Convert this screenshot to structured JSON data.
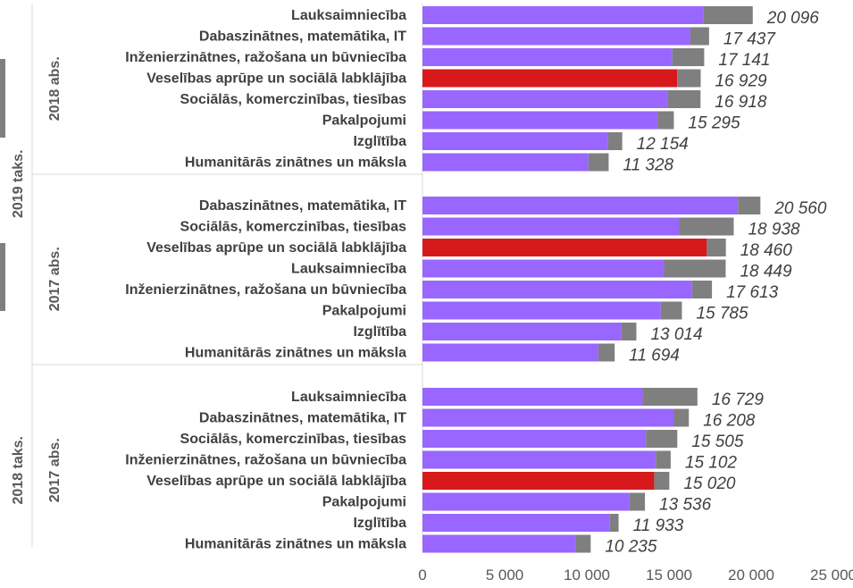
{
  "chart_data": {
    "type": "bar",
    "orientation": "horizontal",
    "stacked": true,
    "xlim": [
      0,
      25000
    ],
    "x_ticks": [
      "0",
      "5 000",
      "10 000",
      "15 000",
      "20 000",
      "25 000"
    ],
    "grid": false,
    "colors": {
      "main": "#9966ff",
      "highlight": "#d7191c",
      "remainder": "#7f7f7f"
    },
    "groups": [
      {
        "outer_label": "2019 taks.",
        "inner_label": "2018 abs.",
        "rows": [
          {
            "category": "Lauksaimniecība",
            "base": 17100,
            "total": 20096,
            "total_label": "20 096",
            "highlight": false
          },
          {
            "category": "Dabaszinātnes, matemātika, IT",
            "base": 16300,
            "total": 17437,
            "total_label": "17 437",
            "highlight": false
          },
          {
            "category": "Inženierzinātnes, ražošana un būvniecība",
            "base": 15200,
            "total": 17141,
            "total_label": "17 141",
            "highlight": false
          },
          {
            "category": "Veselības aprūpe un sociālā labklājība",
            "base": 15500,
            "total": 16929,
            "total_label": "16 929",
            "highlight": true
          },
          {
            "category": "Sociālās, komerczinības, tiesības",
            "base": 14900,
            "total": 16918,
            "total_label": "16 918",
            "highlight": false
          },
          {
            "category": "Pakalpojumi",
            "base": 14300,
            "total": 15295,
            "total_label": "15 295",
            "highlight": false
          },
          {
            "category": "Izglītība",
            "base": 11300,
            "total": 12154,
            "total_label": "12 154",
            "highlight": false
          },
          {
            "category": "Humanitārās zinātnes un māksla",
            "base": 10100,
            "total": 11328,
            "total_label": "11 328",
            "highlight": false
          }
        ]
      },
      {
        "outer_label": "2019 taks.",
        "inner_label": "2017 abs.",
        "rows": [
          {
            "category": "Dabaszinātnes, matemātika, IT",
            "base": 19200,
            "total": 20560,
            "total_label": "20 560",
            "highlight": false
          },
          {
            "category": "Sociālās, komerczinības, tiesības",
            "base": 15600,
            "total": 18938,
            "total_label": "18 938",
            "highlight": false
          },
          {
            "category": "Veselības aprūpe un sociālā labklājība",
            "base": 17300,
            "total": 18460,
            "total_label": "18 460",
            "highlight": true
          },
          {
            "category": "Lauksaimniecība",
            "base": 14700,
            "total": 18449,
            "total_label": "18 449",
            "highlight": false
          },
          {
            "category": "Inženierzinātnes, ražošana un būvniecība",
            "base": 16400,
            "total": 17613,
            "total_label": "17 613",
            "highlight": false
          },
          {
            "category": "Pakalpojumi",
            "base": 14500,
            "total": 15785,
            "total_label": "15 785",
            "highlight": false
          },
          {
            "category": "Izglītība",
            "base": 12100,
            "total": 13014,
            "total_label": "13 014",
            "highlight": false
          },
          {
            "category": "Humanitārās zinātnes un māksla",
            "base": 10700,
            "total": 11694,
            "total_label": "11 694",
            "highlight": false
          }
        ]
      },
      {
        "outer_label": "2018 taks.",
        "inner_label": "2017 abs.",
        "rows": [
          {
            "category": "Lauksaimniecība",
            "base": 13400,
            "total": 16729,
            "total_label": "16 729",
            "highlight": false
          },
          {
            "category": "Dabaszinātnes, matemātika, IT",
            "base": 15300,
            "total": 16208,
            "total_label": "16 208",
            "highlight": false
          },
          {
            "category": "Sociālās, komerczinības, tiesības",
            "base": 13600,
            "total": 15505,
            "total_label": "15 505",
            "highlight": false
          },
          {
            "category": "Inženierzinātnes, ražošana un būvniecība",
            "base": 14200,
            "total": 15102,
            "total_label": "15 102",
            "highlight": false
          },
          {
            "category": "Veselības aprūpe un sociālā labklājība",
            "base": 14100,
            "total": 15020,
            "total_label": "15 020",
            "highlight": true
          },
          {
            "category": "Pakalpojumi",
            "base": 12600,
            "total": 13536,
            "total_label": "13 536",
            "highlight": false
          },
          {
            "category": "Izglītība",
            "base": 11400,
            "total": 11933,
            "total_label": "11 933",
            "highlight": false
          },
          {
            "category": "Humanitārās zinātnes un māksla",
            "base": 9300,
            "total": 10235,
            "total_label": "10 235",
            "highlight": false
          }
        ]
      }
    ]
  }
}
